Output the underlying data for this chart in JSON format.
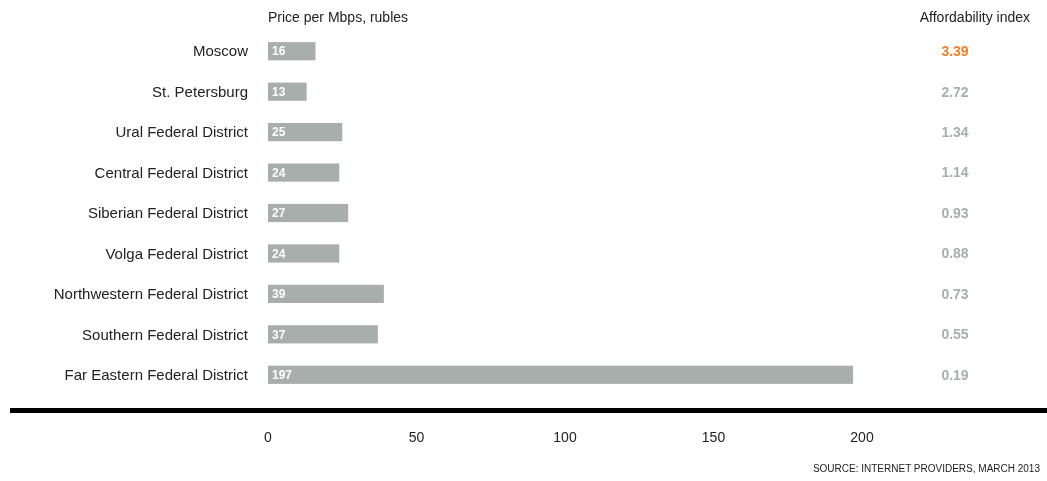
{
  "chart_data": {
    "type": "bar",
    "orientation": "horizontal",
    "xlabel": "Price per Mbps, rubles",
    "categories": [
      "Moscow",
      "St. Petersburg",
      "Ural Federal District",
      "Central Federal District",
      "Siberian Federal District",
      "Volga Federal District",
      "Northwestern Federal District",
      "Southern Federal District",
      "Far Eastern Federal District"
    ],
    "values": [
      16,
      13,
      25,
      24,
      27,
      24,
      39,
      37,
      197
    ],
    "color": "#a8aeab",
    "data_labels": true,
    "xlim": [
      0,
      200
    ],
    "xticks": [
      0,
      50,
      100,
      150,
      200
    ],
    "annotations": [
      "Affordability index",
      "3.39",
      "2.72",
      "1.34",
      "1.14",
      "0.93",
      "0.88",
      "0.73",
      "0.55",
      "0.19",
      "SOURCE: INTERNET PROVIDERS, MARCH 2013"
    ]
  }
}
